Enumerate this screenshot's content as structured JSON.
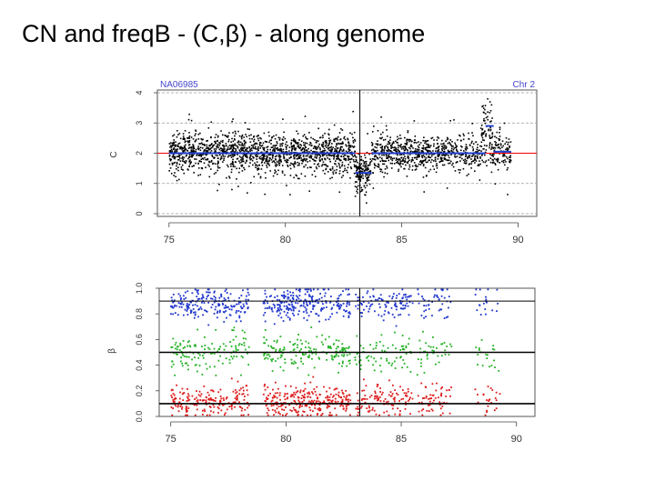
{
  "slide": {
    "title": "CN and freqB - (C,β) - along genome"
  },
  "chart_data": [
    {
      "type": "scatter",
      "panel": "copy-number",
      "sample_label": "NA06985",
      "chromosome_label": "Chr 2",
      "ylabel": "C",
      "xlim": [
        74.5,
        90.8
      ],
      "ylim": [
        0,
        4
      ],
      "x_ticks": [
        75,
        80,
        85,
        90
      ],
      "y_ticks": [
        0,
        1,
        2,
        3,
        4
      ],
      "grid": "dashed horizontal at integer copy numbers",
      "reference_line": {
        "y": 2,
        "color": "#ff0000"
      },
      "vertical_marker_x": 83.2,
      "colors": {
        "points": "#000000",
        "segments": "#1f3fd0",
        "reference": "#ff0000",
        "grid": "#9a9a9a"
      },
      "segments": [
        {
          "x": [
            75.0,
            83.0
          ],
          "y": 2.0
        },
        {
          "x": [
            83.0,
            83.7
          ],
          "y": 1.35
        },
        {
          "x": [
            83.7,
            88.6
          ],
          "y": 2.0
        },
        {
          "x": [
            88.6,
            88.95
          ],
          "y": 2.9
        },
        {
          "x": [
            88.95,
            89.7
          ],
          "y": 2.05
        }
      ],
      "point_regions": [
        {
          "x": [
            75.0,
            83.0
          ],
          "center": 2.0,
          "spread": 0.32,
          "count": 1500
        },
        {
          "x": [
            83.0,
            83.7
          ],
          "center": 1.35,
          "spread": 0.3,
          "count": 160
        },
        {
          "x": [
            83.7,
            86.8
          ],
          "center": 2.0,
          "spread": 0.3,
          "count": 520
        },
        {
          "x": [
            86.8,
            88.4
          ],
          "center": 2.0,
          "spread": 0.3,
          "count": 200
        },
        {
          "x": [
            88.4,
            88.9
          ],
          "center": 2.6,
          "spread": 0.55,
          "count": 90
        },
        {
          "x": [
            88.9,
            89.7
          ],
          "center": 2.05,
          "spread": 0.3,
          "count": 110
        }
      ]
    },
    {
      "type": "scatter",
      "panel": "allele-frequency",
      "ylabel": "β",
      "xlim": [
        74.5,
        90.8
      ],
      "ylim": [
        0,
        1
      ],
      "x_ticks": [
        75,
        80,
        85,
        90
      ],
      "y_ticks": [
        0.0,
        0.2,
        0.4,
        0.6,
        0.8,
        1.0
      ],
      "y_tick_labels": [
        "0.0",
        "0.2",
        "0.4",
        "0.6",
        "0.8",
        "1.0"
      ],
      "reference_lines": [
        0.1,
        0.5,
        0.9
      ],
      "vertical_marker_x": 83.2,
      "colors": {
        "high": "#1f35cc",
        "mid": "#22b122",
        "low": "#dd1a1a"
      },
      "series": [
        {
          "name": "",
          "color": "#1f35cc",
          "center": 0.88,
          "spread": 0.06,
          "count": 620
        },
        {
          "name": "",
          "color": "#22b122",
          "center": 0.5,
          "spread": 0.07,
          "count": 430
        },
        {
          "name": "",
          "color": "#dd1a1a",
          "center": 0.12,
          "spread": 0.06,
          "count": 660
        }
      ],
      "x_clusters": [
        {
          "x": [
            75.0,
            78.4
          ],
          "weight": 1.0
        },
        {
          "x": [
            79.0,
            82.8
          ],
          "weight": 1.3
        },
        {
          "x": [
            83.0,
            85.5
          ],
          "weight": 0.8
        },
        {
          "x": [
            85.7,
            87.2
          ],
          "weight": 0.6
        },
        {
          "x": [
            88.2,
            89.3
          ],
          "weight": 0.35
        }
      ]
    }
  ]
}
